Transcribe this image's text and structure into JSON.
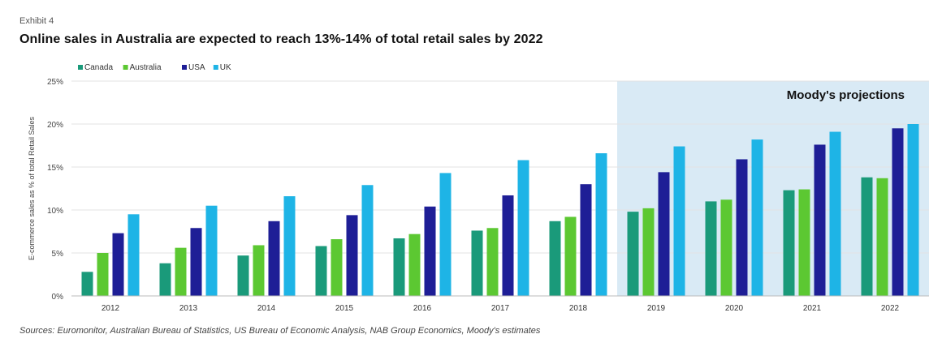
{
  "exhibit_label": "Exhibit 4",
  "title": "Online sales in Australia are expected to reach 13%-14% of total retail sales by 2022",
  "source": "Sources: Euromonitor, Australian Bureau of Statistics, US Bureau of Economic Analysis, NAB Group Economics, Moody's estimates",
  "chart_data": {
    "type": "bar",
    "categories": [
      "2012",
      "2013",
      "2014",
      "2015",
      "2016",
      "2017",
      "2018",
      "2019",
      "2020",
      "2021",
      "2022"
    ],
    "series": [
      {
        "name": "Canada",
        "color": "#1a9a7a",
        "values": [
          2.8,
          3.8,
          4.7,
          5.8,
          6.7,
          7.6,
          8.7,
          9.8,
          11.0,
          12.3,
          13.8
        ]
      },
      {
        "name": "Australia",
        "color": "#5cc832",
        "values": [
          5.0,
          5.6,
          5.9,
          6.6,
          7.2,
          7.9,
          9.2,
          10.2,
          11.2,
          12.4,
          13.7
        ]
      },
      {
        "name": "USA",
        "color": "#1e1e96",
        "values": [
          7.3,
          7.9,
          8.7,
          9.4,
          10.4,
          11.7,
          13.0,
          14.4,
          15.9,
          17.6,
          19.5
        ]
      },
      {
        "name": "UK",
        "color": "#1eb4e6",
        "values": [
          9.5,
          10.5,
          11.6,
          12.9,
          14.3,
          15.8,
          16.6,
          17.4,
          18.2,
          19.1,
          20.0
        ]
      }
    ],
    "ylabel": "E-commerce sales as % of total Retail Sales",
    "ylim": [
      0,
      25
    ],
    "yticks": [
      "0%",
      "5%",
      "10%",
      "15%",
      "20%",
      "25%"
    ],
    "ytick_values": [
      0,
      5,
      10,
      15,
      20,
      25
    ],
    "legend_position": "top-left",
    "gridlines": true,
    "shaded_region": {
      "label": "Moody's projections",
      "from_category": "2019",
      "to_category": "2022",
      "color": "#d9eaf5"
    }
  }
}
